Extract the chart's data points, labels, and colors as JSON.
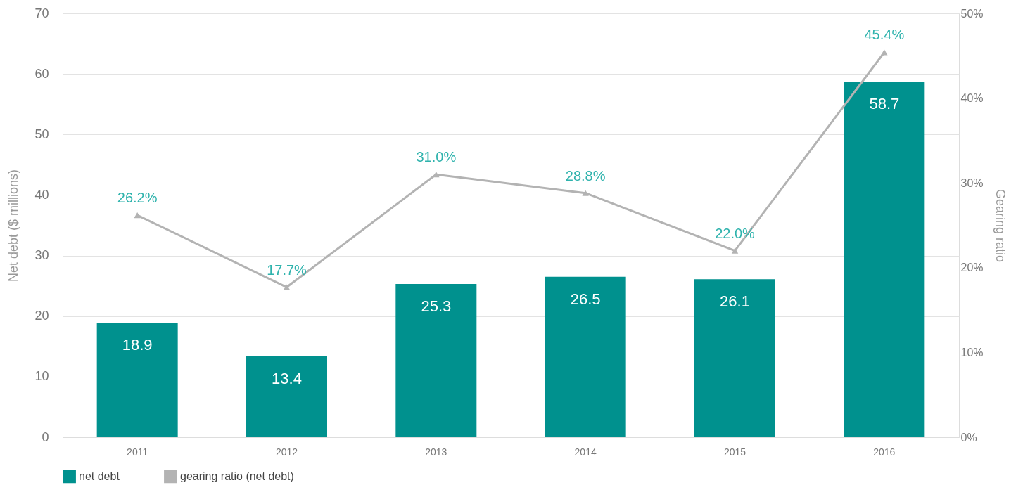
{
  "chart_data": {
    "type": "bar",
    "categories": [
      "2011",
      "2012",
      "2013",
      "2014",
      "2015",
      "2016"
    ],
    "ylabel": "Net debt ($ millions)",
    "y2label": "Gearing ratio",
    "ylim": [
      0,
      70
    ],
    "yticks": [
      0,
      10,
      20,
      30,
      40,
      50,
      60,
      70
    ],
    "y2lim": [
      0,
      50
    ],
    "y2ticks": [
      {
        "value": 0,
        "label": "0%"
      },
      {
        "value": 10,
        "label": "10%"
      },
      {
        "value": 20,
        "label": "20%"
      },
      {
        "value": 30,
        "label": "30%"
      },
      {
        "value": 40,
        "label": "40%"
      },
      {
        "value": 50,
        "label": "50%"
      }
    ],
    "grid": "y",
    "legend": "bottom",
    "series": [
      {
        "name": "net debt",
        "color": "#00918e",
        "values": [
          18.9,
          13.4,
          25.3,
          26.5,
          26.1,
          58.7
        ],
        "value_labels": [
          "18.9",
          "13.4",
          "25.3",
          "26.5",
          "26.1",
          "58.7"
        ]
      },
      {
        "name": "gearing ratio (net debt)",
        "type": "line",
        "axis": "y2",
        "color": "#b3b3b3",
        "marker": "triangle",
        "values": [
          26.2,
          17.7,
          31.0,
          28.8,
          22.0,
          45.4
        ],
        "value_labels": [
          "26.2%",
          "17.7%",
          "31.0%",
          "28.8%",
          "22.0%",
          "45.4%"
        ]
      }
    ]
  }
}
